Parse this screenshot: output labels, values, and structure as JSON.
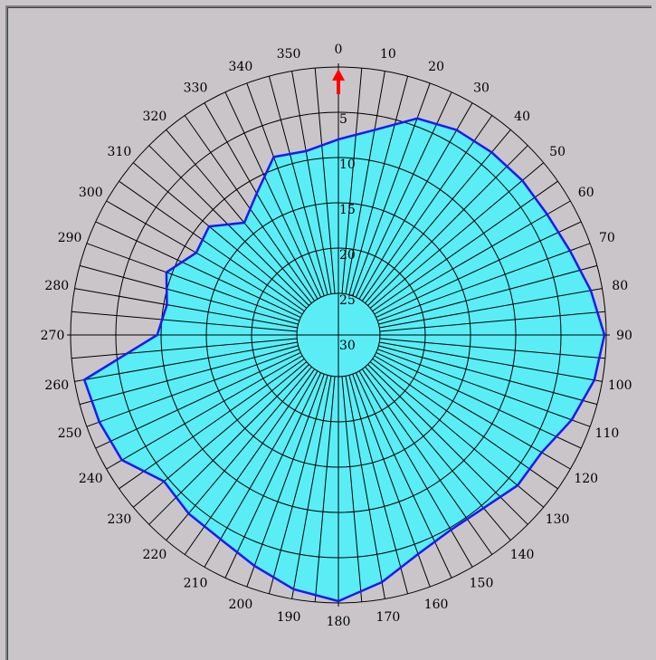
{
  "chart_data": {
    "type": "polar-area",
    "angle_ticks": [
      "0",
      "10",
      "20",
      "30",
      "40",
      "50",
      "60",
      "70",
      "80",
      "90",
      "100",
      "110",
      "120",
      "130",
      "140",
      "150",
      "160",
      "170",
      "180",
      "190",
      "200",
      "210",
      "220",
      "230",
      "240",
      "250",
      "260",
      "270",
      "280",
      "290",
      "300",
      "310",
      "320",
      "330",
      "340",
      "350"
    ],
    "ring_labels": [
      "5",
      "10",
      "15",
      "20",
      "25",
      "30"
    ],
    "radial_range": [
      0,
      30
    ],
    "radial_reversed": true,
    "angle_direction": "clockwise",
    "zero_location": "top",
    "pointer_angle": 0,
    "series": [
      {
        "angles": [
          0,
          10,
          20,
          30,
          40,
          50,
          60,
          70,
          80,
          90,
          100,
          110,
          120,
          130,
          140,
          150,
          160,
          170,
          180,
          190,
          200,
          210,
          220,
          230,
          240,
          250,
          260,
          270,
          280,
          290,
          300,
          310,
          320,
          330,
          340,
          350
        ],
        "values": [
          8.1,
          6.7,
          4.2,
          3.5,
          3.3,
          3.1,
          3.0,
          2.4,
          1.3,
          0.2,
          0.9,
          2.2,
          3.7,
          3.8,
          4.7,
          4.8,
          3.9,
          1.9,
          0.2,
          1.1,
          2.5,
          3.6,
          3.9,
          4.5,
          2.0,
          1.5,
          1.1,
          9.7,
          10.5,
          9.5,
          11.6,
          11.1,
          13.6,
          11.7,
          8.8,
          9.1
        ]
      }
    ],
    "colors": {
      "fill": "#5aedf5",
      "outline": "#1a1af0",
      "grid": "#000000",
      "pointer": "#ff0000",
      "background": "#c9c5c9"
    }
  }
}
